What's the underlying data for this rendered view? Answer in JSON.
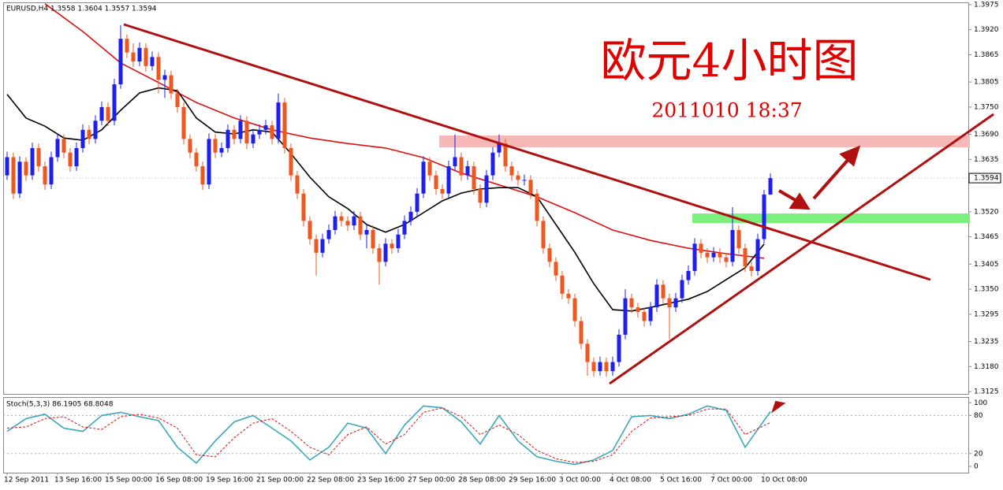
{
  "chart_data": [
    {
      "type": "candlestick",
      "header": "EURUSD,H4  1.3558 1.3604 1.3557 1.3594",
      "title": "欧元4小时图",
      "subtitle": "2011010 18:37",
      "up_color": "#1e1ef0",
      "down_color": "#f0561e",
      "ylim": [
        1.312,
        1.398
      ],
      "yticks": [
        1.3975,
        {
          "value": 1.392,
          "label": "1.3920"
        },
        1.3865,
        1.3805,
        {
          "value": 1.375,
          "label": "1.3750"
        },
        {
          "value": 1.369,
          "label": "1.3690"
        },
        1.3635,
        {
          "value": 1.352,
          "label": "1.3520"
        },
        1.3465,
        1.3405,
        {
          "value": 1.335,
          "label": "1.3350"
        },
        1.3295,
        1.3235,
        {
          "value": 1.318,
          "label": "1.3180"
        },
        1.3125
      ],
      "last_price": 1.3594,
      "xticks": [
        {
          "value": 0,
          "label": "12 Sep 2011"
        },
        {
          "value": 8,
          "label": "13 Sep 16:00"
        },
        {
          "value": 16,
          "label": "15 Sep 00:00"
        },
        {
          "value": 24,
          "label": "16 Sep 08:00"
        },
        {
          "value": 32,
          "label": "19 Sep 16:00"
        },
        {
          "value": 40,
          "label": "21 Sep 00:00"
        },
        {
          "value": 48,
          "label": "22 Sep 08:00"
        },
        {
          "value": 56,
          "label": "23 Sep 16:00"
        },
        {
          "value": 64,
          "label": "27 Sep 00:00"
        },
        {
          "value": 72,
          "label": "28 Sep 08:00"
        },
        {
          "value": 80,
          "label": "29 Sep 16:00"
        },
        {
          "value": 88,
          "label": "3 Oct 00:00"
        },
        {
          "value": 96,
          "label": "4 Oct 08:00"
        },
        {
          "value": 104,
          "label": "5 Oct 16:00"
        },
        {
          "value": 112,
          "label": "7 Oct 00:00"
        },
        {
          "value": 120,
          "label": "10 Oct 08:00"
        }
      ],
      "candles": [
        [
          1.36,
          1.3652,
          1.359,
          1.364
        ],
        [
          1.364,
          1.365,
          1.3548,
          1.356
        ],
        [
          1.356,
          1.3642,
          1.355,
          1.363
        ],
        [
          1.363,
          1.364,
          1.3588,
          1.36
        ],
        [
          1.36,
          1.3672,
          1.359,
          1.366
        ],
        [
          1.366,
          1.367,
          1.3608,
          1.362
        ],
        [
          1.362,
          1.363,
          1.3568,
          1.358
        ],
        [
          1.358,
          1.3652,
          1.357,
          1.364
        ],
        [
          1.364,
          1.3692,
          1.363,
          1.368
        ],
        [
          1.368,
          1.369,
          1.3638,
          1.365
        ],
        [
          1.365,
          1.366,
          1.3608,
          1.362
        ],
        [
          1.362,
          1.3672,
          1.361,
          1.366
        ],
        [
          1.366,
          1.3712,
          1.365,
          1.37
        ],
        [
          1.37,
          1.371,
          1.3668,
          1.368
        ],
        [
          1.368,
          1.3732,
          1.367,
          1.372
        ],
        [
          1.372,
          1.3762,
          1.371,
          1.375
        ],
        [
          1.375,
          1.376,
          1.3708,
          1.372
        ],
        [
          1.372,
          1.3812,
          1.371,
          1.38
        ],
        [
          1.38,
          1.393,
          1.379,
          1.39
        ],
        [
          1.39,
          1.391,
          1.3858,
          1.387
        ],
        [
          1.387,
          1.389,
          1.3838,
          1.385
        ],
        [
          1.385,
          1.3892,
          1.384,
          1.388
        ],
        [
          1.388,
          1.389,
          1.3828,
          1.384
        ],
        [
          1.384,
          1.3872,
          1.383,
          1.386
        ],
        [
          1.386,
          1.387,
          1.378,
          1.381
        ],
        [
          1.381,
          1.3832,
          1.377,
          1.382
        ],
        [
          1.382,
          1.383,
          1.3768,
          1.378
        ],
        [
          1.378,
          1.379,
          1.3738,
          1.375
        ],
        [
          1.375,
          1.376,
          1.3668,
          1.368
        ],
        [
          1.368,
          1.369,
          1.3638,
          1.365
        ],
        [
          1.365,
          1.366,
          1.3608,
          1.362
        ],
        [
          1.362,
          1.363,
          1.3568,
          1.358
        ],
        [
          1.358,
          1.3692,
          1.357,
          1.368
        ],
        [
          1.368,
          1.369,
          1.3638,
          1.365
        ],
        [
          1.365,
          1.3672,
          1.364,
          1.366
        ],
        [
          1.366,
          1.3712,
          1.365,
          1.37
        ],
        [
          1.37,
          1.371,
          1.3668,
          1.368
        ],
        [
          1.368,
          1.3732,
          1.367,
          1.372
        ],
        [
          1.372,
          1.373,
          1.3658,
          1.367
        ],
        [
          1.367,
          1.3702,
          1.366,
          1.369
        ],
        [
          1.369,
          1.3712,
          1.368,
          1.37
        ],
        [
          1.37,
          1.3722,
          1.369,
          1.371
        ],
        [
          1.371,
          1.372,
          1.3668,
          1.368
        ],
        [
          1.368,
          1.378,
          1.367,
          1.376
        ],
        [
          1.376,
          1.377,
          1.3648,
          1.366
        ],
        [
          1.366,
          1.367,
          1.3588,
          1.36
        ],
        [
          1.36,
          1.361,
          1.3548,
          1.356
        ],
        [
          1.356,
          1.357,
          1.3488,
          1.35
        ],
        [
          1.35,
          1.351,
          1.3448,
          1.346
        ],
        [
          1.346,
          1.347,
          1.338,
          1.343
        ],
        [
          1.343,
          1.3472,
          1.342,
          1.346
        ],
        [
          1.346,
          1.3492,
          1.345,
          1.348
        ],
        [
          1.348,
          1.3522,
          1.347,
          1.351
        ],
        [
          1.351,
          1.352,
          1.3488,
          1.35
        ],
        [
          1.35,
          1.351,
          1.3478,
          1.349
        ],
        [
          1.349,
          1.3522,
          1.348,
          1.351
        ],
        [
          1.351,
          1.352,
          1.3458,
          1.347
        ],
        [
          1.347,
          1.3492,
          1.344,
          1.348
        ],
        [
          1.348,
          1.349,
          1.3428,
          1.344
        ],
        [
          1.344,
          1.345,
          1.336,
          1.341
        ],
        [
          1.341,
          1.3462,
          1.34,
          1.345
        ],
        [
          1.345,
          1.346,
          1.3428,
          1.344
        ],
        [
          1.344,
          1.3482,
          1.343,
          1.347
        ],
        [
          1.347,
          1.3512,
          1.346,
          1.35
        ],
        [
          1.35,
          1.3532,
          1.349,
          1.352
        ],
        [
          1.352,
          1.3572,
          1.351,
          1.356
        ],
        [
          1.356,
          1.3642,
          1.355,
          1.363
        ],
        [
          1.363,
          1.364,
          1.3588,
          1.36
        ],
        [
          1.36,
          1.361,
          1.3558,
          1.357
        ],
        [
          1.357,
          1.358,
          1.3548,
          1.356
        ],
        [
          1.356,
          1.3632,
          1.355,
          1.362
        ],
        [
          1.362,
          1.369,
          1.361,
          1.364
        ],
        [
          1.364,
          1.365,
          1.3588,
          1.36
        ],
        [
          1.36,
          1.3632,
          1.359,
          1.362
        ],
        [
          1.362,
          1.363,
          1.3558,
          1.357
        ],
        [
          1.357,
          1.358,
          1.3528,
          1.354
        ],
        [
          1.354,
          1.3612,
          1.353,
          1.36
        ],
        [
          1.36,
          1.3662,
          1.359,
          1.365
        ],
        [
          1.365,
          1.369,
          1.364,
          1.367
        ],
        [
          1.367,
          1.368,
          1.3608,
          1.362
        ],
        [
          1.362,
          1.363,
          1.3588,
          1.36
        ],
        [
          1.36,
          1.361,
          1.3578,
          1.359
        ],
        [
          1.359,
          1.3602,
          1.3578,
          1.359
        ],
        [
          1.359,
          1.36,
          1.3548,
          1.356
        ],
        [
          1.356,
          1.357,
          1.3488,
          1.35
        ],
        [
          1.35,
          1.351,
          1.3428,
          1.344
        ],
        [
          1.344,
          1.345,
          1.3398,
          1.341
        ],
        [
          1.341,
          1.342,
          1.3368,
          1.338
        ],
        [
          1.338,
          1.339,
          1.3328,
          1.334
        ],
        [
          1.334,
          1.335,
          1.3318,
          1.333
        ],
        [
          1.333,
          1.334,
          1.3268,
          1.328
        ],
        [
          1.328,
          1.329,
          1.3218,
          1.323
        ],
        [
          1.323,
          1.324,
          1.316,
          1.319
        ],
        [
          1.319,
          1.32,
          1.3158,
          1.317
        ],
        [
          1.317,
          1.3202,
          1.316,
          1.319
        ],
        [
          1.319,
          1.32,
          1.3158,
          1.317
        ],
        [
          1.317,
          1.3202,
          1.316,
          1.319
        ],
        [
          1.319,
          1.3262,
          1.318,
          1.325
        ],
        [
          1.325,
          1.335,
          1.324,
          1.333
        ],
        [
          1.333,
          1.334,
          1.3298,
          1.331
        ],
        [
          1.331,
          1.332,
          1.3288,
          1.33
        ],
        [
          1.33,
          1.331,
          1.3268,
          1.328
        ],
        [
          1.328,
          1.3322,
          1.327,
          1.331
        ],
        [
          1.331,
          1.3372,
          1.33,
          1.336
        ],
        [
          1.336,
          1.337,
          1.3318,
          1.333
        ],
        [
          1.333,
          1.334,
          1.324,
          1.331
        ],
        [
          1.331,
          1.3342,
          1.33,
          1.333
        ],
        [
          1.333,
          1.3382,
          1.332,
          1.337
        ],
        [
          1.337,
          1.3402,
          1.336,
          1.339
        ],
        [
          1.339,
          1.3462,
          1.338,
          1.345
        ],
        [
          1.345,
          1.346,
          1.3418,
          1.343
        ],
        [
          1.343,
          1.344,
          1.3408,
          1.342
        ],
        [
          1.342,
          1.3442,
          1.341,
          1.343
        ],
        [
          1.343,
          1.344,
          1.3408,
          1.342
        ],
        [
          1.342,
          1.343,
          1.3398,
          1.341
        ],
        [
          1.341,
          1.353,
          1.34,
          1.348
        ],
        [
          1.348,
          1.349,
          1.3428,
          1.344
        ],
        [
          1.344,
          1.345,
          1.3388,
          1.34
        ],
        [
          1.34,
          1.341,
          1.3378,
          1.339
        ],
        [
          1.339,
          1.3472,
          1.338,
          1.346
        ],
        [
          1.346,
          1.3568,
          1.345,
          1.3558
        ],
        [
          1.3558,
          1.3604,
          1.3557,
          1.3594
        ]
      ],
      "series": [
        {
          "color": "#e01010",
          "x": [
            6,
            12,
            18,
            24,
            30,
            36,
            42,
            48,
            54,
            60,
            66,
            72,
            78,
            84,
            90,
            96,
            102,
            108,
            114,
            120
          ],
          "values": [
            1.3977,
            1.3916,
            1.3847,
            1.3804,
            1.376,
            1.3726,
            1.37,
            1.3682,
            1.367,
            1.366,
            1.3639,
            1.3605,
            1.3579,
            1.3553,
            1.3518,
            1.348,
            1.3457,
            1.344,
            1.3428,
            1.3418
          ]
        },
        {
          "color": "#000000",
          "x": [
            0,
            3,
            6,
            9,
            12,
            15,
            18,
            21,
            24,
            27,
            30,
            33,
            36,
            39,
            42,
            45,
            48,
            51,
            54,
            57,
            60,
            63,
            66,
            69,
            72,
            75,
            78,
            81,
            84,
            87,
            90,
            93,
            96,
            99,
            102,
            105,
            108,
            111,
            114,
            117,
            120
          ],
          "values": [
            1.3778,
            1.3726,
            1.3708,
            1.3682,
            1.3677,
            1.37,
            1.3743,
            1.3781,
            1.3792,
            1.3786,
            1.3726,
            1.3695,
            1.3691,
            1.37,
            1.3695,
            1.3648,
            1.3596,
            1.3553,
            1.3527,
            1.3492,
            1.3475,
            1.3492,
            1.3518,
            1.3544,
            1.3561,
            1.357,
            1.3573,
            1.3573,
            1.3553,
            1.3492,
            1.3431,
            1.3362,
            1.3305,
            1.3302,
            1.331,
            1.3319,
            1.3328,
            1.3345,
            1.3371,
            1.3397,
            1.3449
          ]
        }
      ]
    },
    {
      "type": "line",
      "label": "Stoch(5,3,3) 86.1905 68.8048",
      "ylim": [
        -10,
        109
      ],
      "yticks": [
        100,
        80,
        20,
        0
      ],
      "series": [
        {
          "color": "#3aa8b8",
          "dash": false,
          "x": [
            0,
            3,
            6,
            9,
            12,
            15,
            18,
            21,
            24,
            27,
            30,
            33,
            36,
            39,
            42,
            45,
            48,
            51,
            54,
            57,
            60,
            63,
            66,
            69,
            72,
            75,
            78,
            81,
            84,
            87,
            90,
            93,
            96,
            99,
            102,
            105,
            108,
            111,
            114,
            117,
            121
          ],
          "values": [
            55,
            75,
            82,
            60,
            55,
            80,
            85,
            78,
            72,
            30,
            5,
            40,
            70,
            80,
            60,
            40,
            10,
            30,
            68,
            60,
            20,
            65,
            95,
            92,
            70,
            35,
            80,
            40,
            15,
            8,
            3,
            10,
            25,
            78,
            80,
            75,
            82,
            95,
            88,
            30,
            86.1905
          ]
        },
        {
          "color": "#e01010",
          "dash": true,
          "x": [
            0,
            3,
            6,
            9,
            12,
            15,
            18,
            21,
            24,
            27,
            30,
            33,
            36,
            39,
            42,
            45,
            48,
            51,
            54,
            57,
            60,
            63,
            66,
            69,
            72,
            75,
            78,
            81,
            84,
            87,
            90,
            93,
            96,
            99,
            102,
            105,
            108,
            111,
            114,
            117,
            121
          ],
          "values": [
            60,
            62,
            75,
            78,
            62,
            58,
            78,
            82,
            76,
            60,
            18,
            15,
            45,
            68,
            75,
            55,
            30,
            18,
            50,
            62,
            35,
            50,
            85,
            92,
            78,
            50,
            65,
            50,
            25,
            12,
            6,
            8,
            18,
            55,
            76,
            78,
            80,
            90,
            90,
            50,
            68.8048
          ]
        }
      ]
    }
  ]
}
